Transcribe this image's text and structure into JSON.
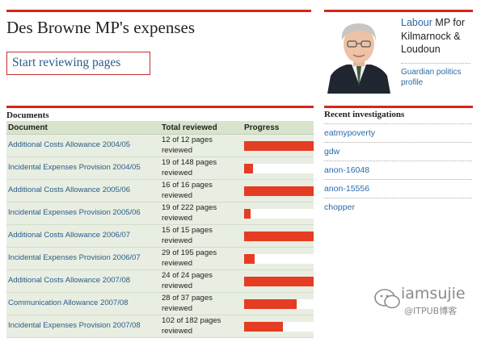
{
  "page": {
    "title": "Des Browne MP's expenses",
    "cta_label": "Start reviewing pages"
  },
  "mp": {
    "party": "Labour",
    "rest": " MP for Kilmarnock & Loudoun",
    "profile_link": "Guardian politics profile"
  },
  "documents": {
    "heading": "Documents",
    "columns": [
      "Document",
      "Total reviewed",
      "Progress"
    ],
    "rows": [
      {
        "name": "Additional Costs Allowance 2004/05",
        "reviewed": "12 of 12 pages reviewed",
        "progress": 1.0
      },
      {
        "name": "Incidental Expenses Provision 2004/05",
        "reviewed": "19 of 148 pages reviewed",
        "progress": 0.13
      },
      {
        "name": "Additional Costs Allowance 2005/06",
        "reviewed": "16 of 16 pages reviewed",
        "progress": 1.0
      },
      {
        "name": "Incidental Expenses Provision 2005/06",
        "reviewed": "19 of 222 pages reviewed",
        "progress": 0.09
      },
      {
        "name": "Additional Costs Allowance 2006/07",
        "reviewed": "15 of 15 pages reviewed",
        "progress": 1.0
      },
      {
        "name": "Incidental Expenses Provision 2006/07",
        "reviewed": "29 of 195 pages reviewed",
        "progress": 0.15
      },
      {
        "name": "Additional Costs Allowance 2007/08",
        "reviewed": "24 of 24 pages reviewed",
        "progress": 1.0
      },
      {
        "name": "Communication Allowance 2007/08",
        "reviewed": "28 of 37 pages reviewed",
        "progress": 0.76
      },
      {
        "name": "Incidental Expenses Provision 2007/08",
        "reviewed": "102 of 182 pages reviewed",
        "progress": 0.56
      }
    ]
  },
  "recent": {
    "heading": "Recent investigations",
    "items": [
      "eatmypoverty",
      "gdw",
      "anon-16048",
      "anon-15556",
      "chopper"
    ]
  },
  "watermark": {
    "text": "iamsujie",
    "sub": "@ITPUB博客"
  },
  "colors": {
    "accent_red": "#d9261c",
    "progress_fill": "#e53c24",
    "link_blue": "#2a5c8a",
    "table_header_bg": "#d8e3cc",
    "table_row_bg": "#e8eee1"
  }
}
